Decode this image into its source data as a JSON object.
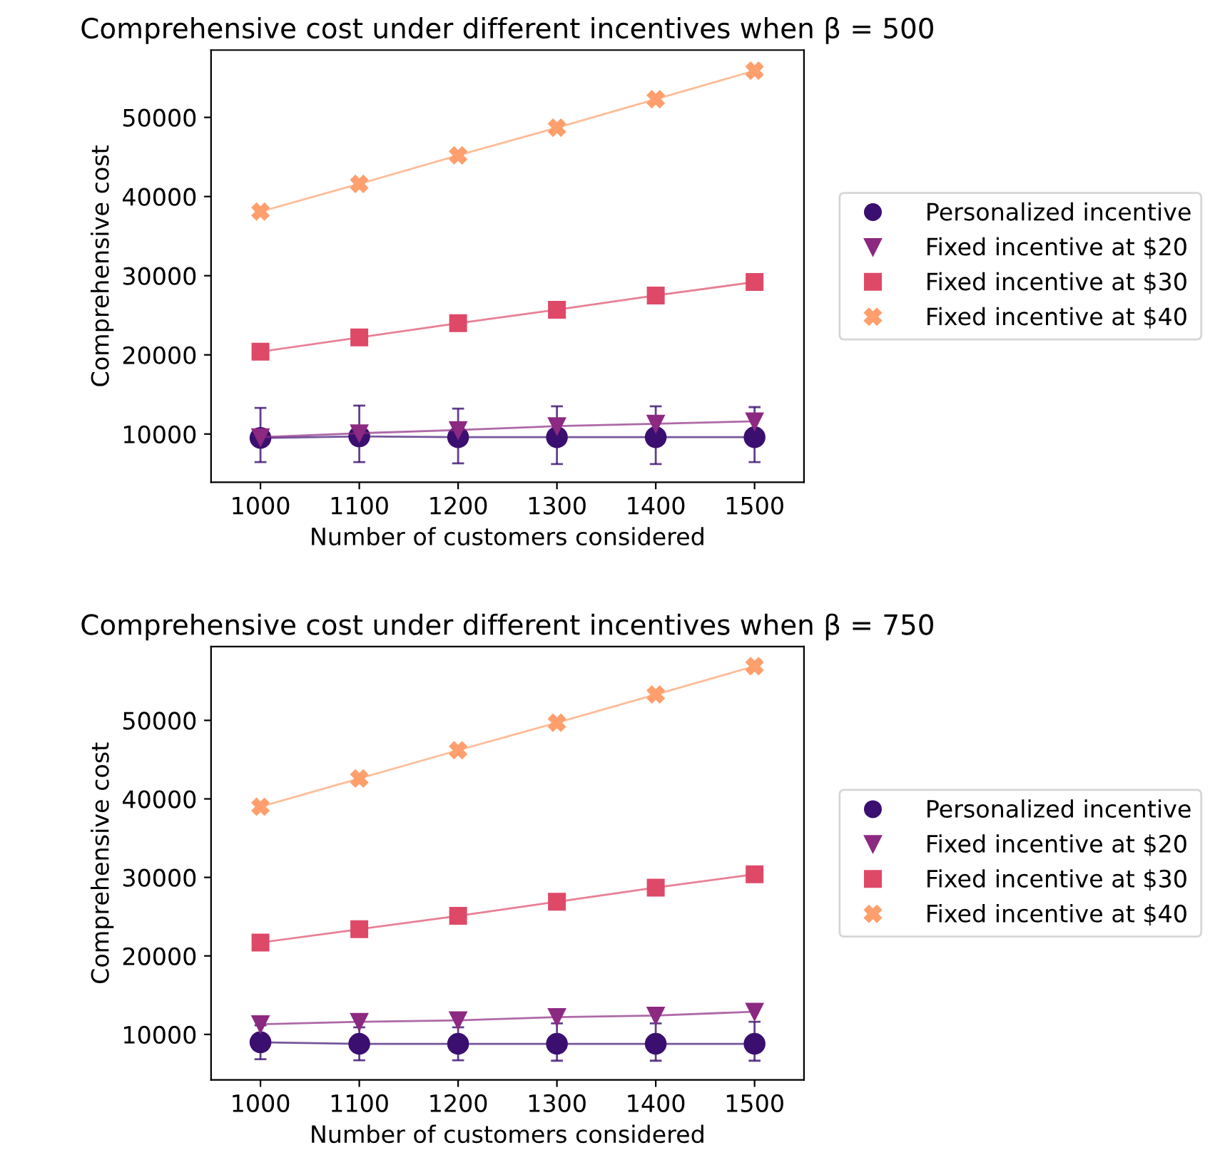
{
  "chart_data": [
    {
      "type": "line",
      "title": "Comprehensive cost under different incentives when β = 500",
      "xlabel": "Number of customers considered",
      "ylabel": "Comprehensive cost",
      "x": [
        1000,
        1100,
        1200,
        1300,
        1400,
        1500
      ],
      "xlim": [
        950,
        1550
      ],
      "xticks": [
        1000,
        1100,
        1200,
        1300,
        1400,
        1500
      ],
      "ylim": [
        3900,
        58500
      ],
      "yticks": [
        10000,
        20000,
        30000,
        40000,
        50000
      ],
      "grid": false,
      "legend": "right",
      "line_style": "solid",
      "series": [
        {
          "name": "Personalized incentive",
          "color": "#3b0f70",
          "marker": "circle",
          "values": [
            9500,
            9700,
            9600,
            9600,
            9600,
            9600
          ],
          "errors": [
            [
              6450,
              13300
            ],
            [
              6450,
              13600
            ],
            [
              6300,
              13200
            ],
            [
              6200,
              13500
            ],
            [
              6200,
              13500
            ],
            [
              6450,
              13400
            ]
          ]
        },
        {
          "name": "Fixed incentive at $20",
          "color": "#8c2981",
          "marker": "triangle",
          "values": [
            9600,
            10100,
            10500,
            11000,
            11300,
            11600
          ]
        },
        {
          "name": "Fixed incentive at $30",
          "color": "#de4968",
          "marker": "square",
          "values": [
            20400,
            22200,
            24000,
            25700,
            27500,
            29200
          ]
        },
        {
          "name": "Fixed incentive at $40",
          "color": "#fe9f6d",
          "marker": "cross",
          "values": [
            38100,
            41600,
            45200,
            48700,
            52300,
            55900
          ]
        }
      ]
    },
    {
      "type": "line",
      "title": "Comprehensive cost under different incentives when β = 750",
      "xlabel": "Number of customers considered",
      "ylabel": "Comprehensive cost",
      "x": [
        1000,
        1100,
        1200,
        1300,
        1400,
        1500
      ],
      "xlim": [
        950,
        1550
      ],
      "xticks": [
        1000,
        1100,
        1200,
        1300,
        1400,
        1500
      ],
      "ylim": [
        4200,
        59400
      ],
      "yticks": [
        10000,
        20000,
        30000,
        40000,
        50000
      ],
      "grid": false,
      "legend": "right",
      "line_style": "solid",
      "series": [
        {
          "name": "Personalized incentive",
          "color": "#3b0f70",
          "marker": "circle",
          "values": [
            9000,
            8800,
            8800,
            8800,
            8800,
            8800
          ],
          "errors": [
            [
              6850,
              11150
            ],
            [
              6700,
              10900
            ],
            [
              6700,
              10900
            ],
            [
              6650,
              11400
            ],
            [
              6650,
              11400
            ],
            [
              6650,
              11600
            ]
          ]
        },
        {
          "name": "Fixed incentive at $20",
          "color": "#8c2981",
          "marker": "triangle",
          "values": [
            11300,
            11600,
            11800,
            12200,
            12400,
            12900
          ]
        },
        {
          "name": "Fixed incentive at $30",
          "color": "#de4968",
          "marker": "square",
          "values": [
            21700,
            23400,
            25100,
            26900,
            28700,
            30400
          ]
        },
        {
          "name": "Fixed incentive at $40",
          "color": "#fe9f6d",
          "marker": "cross",
          "values": [
            39000,
            42600,
            46200,
            49700,
            53300,
            56900
          ]
        }
      ]
    }
  ]
}
